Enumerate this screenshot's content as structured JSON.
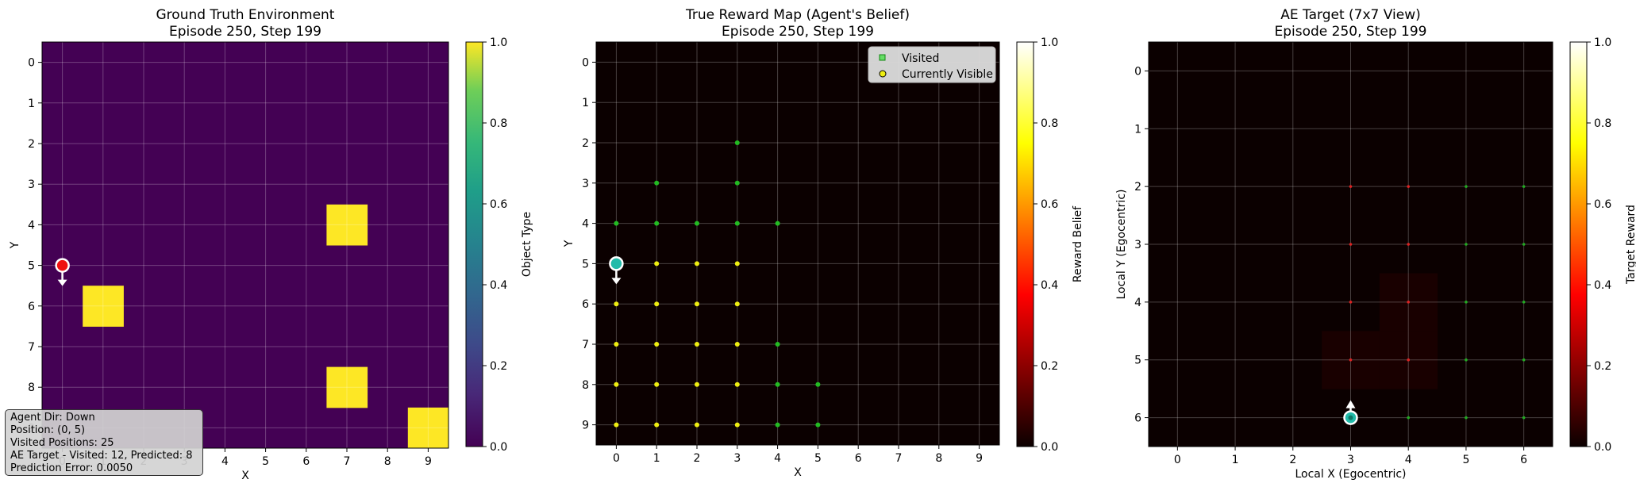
{
  "colors": {
    "viridis_low": "#440154",
    "viridis_high": "#fde725",
    "hot_black": "#0b0000",
    "agent_red": "#ee1111",
    "agent_teal": "#22bbaa",
    "visited_green": "#22bb22",
    "visible_yellow": "#eeee11"
  },
  "info_box": {
    "agent_dir": "Agent Dir: Down",
    "position": "Position: (0, 5)",
    "visited_positions": "Visited Positions: 25",
    "ae_target": "AE Target - Visited: 12, Predicted: 8",
    "prediction_error": "Prediction Error: 0.0050"
  },
  "chart_data": [
    {
      "type": "heatmap",
      "title": "Ground Truth Environment",
      "subtitle": "Episode 250, Step 199",
      "xlabel": "X",
      "ylabel": "Y",
      "x_ticks": [
        "0",
        "1",
        "2",
        "3",
        "4",
        "5",
        "6",
        "7",
        "8",
        "9"
      ],
      "y_ticks": [
        "0",
        "1",
        "2",
        "3",
        "4",
        "5",
        "6",
        "7",
        "8",
        "9"
      ],
      "colorbar": {
        "label": "Object Type",
        "range": [
          0,
          1
        ],
        "ticks": [
          "0.0",
          "0.2",
          "0.4",
          "0.6",
          "0.8",
          "1.0"
        ],
        "cmap": "viridis"
      },
      "grid_size": [
        10,
        10
      ],
      "cells": [
        {
          "x": 7,
          "y": 4,
          "value": 1
        },
        {
          "x": 1,
          "y": 6,
          "value": 1
        },
        {
          "x": 7,
          "y": 8,
          "value": 1
        },
        {
          "x": 9,
          "y": 9,
          "value": 1
        }
      ],
      "agent": {
        "x": 0,
        "y": 5,
        "direction": "down"
      }
    },
    {
      "type": "heatmap",
      "title": "True Reward Map (Agent's Belief)",
      "subtitle": "Episode 250, Step 199",
      "xlabel": "X",
      "ylabel": "Y",
      "x_ticks": [
        "0",
        "1",
        "2",
        "3",
        "4",
        "5",
        "6",
        "7",
        "8",
        "9"
      ],
      "y_ticks": [
        "0",
        "1",
        "2",
        "3",
        "4",
        "5",
        "6",
        "7",
        "8",
        "9"
      ],
      "colorbar": {
        "label": "Reward Belief",
        "range": [
          0,
          1
        ],
        "ticks": [
          "0.0",
          "0.2",
          "0.4",
          "0.6",
          "0.8",
          "1.0"
        ],
        "cmap": "hot"
      },
      "grid_size": [
        10,
        10
      ],
      "legend": {
        "position": "top-right",
        "visited_label": "Visited",
        "visible_label": "Currently Visible"
      },
      "visited": [
        [
          3,
          2
        ],
        [
          1,
          3
        ],
        [
          3,
          3
        ],
        [
          0,
          4
        ],
        [
          1,
          4
        ],
        [
          2,
          4
        ],
        [
          3,
          4
        ],
        [
          4,
          4
        ],
        [
          4,
          7
        ],
        [
          4,
          8
        ],
        [
          5,
          8
        ],
        [
          4,
          9
        ],
        [
          5,
          9
        ]
      ],
      "visible": [
        [
          1,
          5
        ],
        [
          2,
          5
        ],
        [
          3,
          5
        ],
        [
          0,
          6
        ],
        [
          1,
          6
        ],
        [
          2,
          6
        ],
        [
          3,
          6
        ],
        [
          0,
          7
        ],
        [
          1,
          7
        ],
        [
          2,
          7
        ],
        [
          3,
          7
        ],
        [
          0,
          8
        ],
        [
          1,
          8
        ],
        [
          2,
          8
        ],
        [
          3,
          8
        ],
        [
          0,
          9
        ],
        [
          1,
          9
        ],
        [
          2,
          9
        ],
        [
          3,
          9
        ]
      ],
      "agent": {
        "x": 0,
        "y": 5,
        "direction": "down"
      }
    },
    {
      "type": "heatmap",
      "title": "AE Target (7x7 View)",
      "subtitle": "Episode 250, Step 199",
      "xlabel": "Local X (Egocentric)",
      "ylabel": "Local Y (Egocentric)",
      "x_ticks": [
        "0",
        "1",
        "2",
        "3",
        "4",
        "5",
        "6"
      ],
      "y_ticks": [
        "0",
        "1",
        "2",
        "3",
        "4",
        "5",
        "6"
      ],
      "colorbar": {
        "label": "Target Reward",
        "range": [
          0,
          1
        ],
        "ticks": [
          "0.0",
          "0.2",
          "0.4",
          "0.6",
          "0.8",
          "1.0"
        ],
        "cmap": "hot"
      },
      "grid_size": [
        7,
        7
      ],
      "cells": [
        {
          "x": 4,
          "y": 4,
          "value": 0.02
        },
        {
          "x": 3,
          "y": 5,
          "value": 0.02
        },
        {
          "x": 4,
          "y": 5,
          "value": 0.02
        }
      ],
      "red_dots": [
        [
          3,
          2
        ],
        [
          4,
          2
        ],
        [
          3,
          3
        ],
        [
          4,
          3
        ],
        [
          3,
          4
        ],
        [
          4,
          4
        ],
        [
          3,
          5
        ],
        [
          4,
          5
        ]
      ],
      "green_dots": [
        [
          5,
          2
        ],
        [
          6,
          2
        ],
        [
          5,
          3
        ],
        [
          6,
          3
        ],
        [
          5,
          4
        ],
        [
          6,
          4
        ],
        [
          5,
          5
        ],
        [
          6,
          5
        ],
        [
          4,
          6
        ],
        [
          5,
          6
        ],
        [
          6,
          6
        ]
      ],
      "agent": {
        "x": 3,
        "y": 6,
        "direction": "up"
      }
    }
  ]
}
